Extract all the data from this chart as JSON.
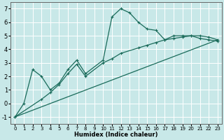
{
  "xlabel": "Humidex (Indice chaleur)",
  "bg_color": "#c8e8e8",
  "grid_color": "#ffffff",
  "line_color": "#1a6b5a",
  "xlim": [
    -0.5,
    23.5
  ],
  "ylim": [
    -1.5,
    7.5
  ],
  "xticks": [
    0,
    1,
    2,
    3,
    4,
    5,
    6,
    7,
    8,
    9,
    10,
    11,
    12,
    13,
    14,
    15,
    16,
    17,
    18,
    19,
    20,
    21,
    22,
    23
  ],
  "yticks": [
    -1,
    0,
    1,
    2,
    3,
    4,
    5,
    6,
    7
  ],
  "line1_x": [
    0,
    1,
    2,
    3,
    4,
    5,
    6,
    7,
    8,
    10,
    11,
    12,
    13,
    14,
    15,
    16,
    17,
    18,
    19,
    20,
    21,
    22,
    23
  ],
  "line1_y": [
    -1,
    0,
    2.5,
    2.0,
    1.0,
    1.5,
    2.5,
    3.2,
    2.2,
    3.2,
    6.4,
    7.0,
    6.7,
    6.0,
    5.5,
    5.4,
    4.7,
    5.0,
    5.0,
    5.0,
    4.8,
    4.7,
    4.6
  ],
  "line2_x": [
    0,
    3,
    4,
    5,
    6,
    7,
    8,
    10,
    11,
    12,
    14,
    15,
    16,
    17,
    18,
    19,
    20,
    21,
    22,
    23
  ],
  "line2_y": [
    -1,
    0.3,
    0.8,
    1.4,
    2.2,
    2.9,
    2.0,
    3.0,
    3.3,
    3.7,
    4.1,
    4.3,
    4.5,
    4.7,
    4.8,
    4.9,
    5.0,
    5.0,
    4.9,
    4.7
  ],
  "line3_x": [
    0,
    23
  ],
  "line3_y": [
    -1.0,
    4.7
  ],
  "xlabel_fontsize": 6,
  "xlabel_fontweight": "bold",
  "tick_fontsize_x": 5,
  "tick_fontsize_y": 6
}
